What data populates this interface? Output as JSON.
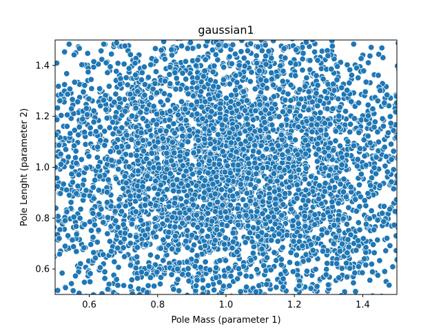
{
  "chart_data": {
    "type": "scatter",
    "title": "gaussian1",
    "xlabel": "Pole Mass (parameter 1)",
    "ylabel": "Pole Lenght (parameter 2)",
    "xlim": [
      0.5,
      1.5
    ],
    "ylim": [
      0.5,
      1.5
    ],
    "xticks": [
      0.6,
      0.8,
      1.0,
      1.2,
      1.4
    ],
    "yticks": [
      0.6,
      0.8,
      1.0,
      1.2,
      1.4
    ],
    "xtick_labels": [
      "0.6",
      "0.8",
      "1.0",
      "1.2",
      "1.4"
    ],
    "ytick_labels": [
      "0.6",
      "0.8",
      "1.0",
      "1.2",
      "1.4"
    ],
    "grid": false,
    "legend": "none",
    "marker_color": "#1f77b4",
    "marker_edge": "#ffffff",
    "distribution": {
      "kind": "gaussian",
      "mean": [
        1.0,
        1.0
      ],
      "std": [
        0.3,
        0.3
      ],
      "n_points": 5000,
      "seed": 1
    }
  }
}
